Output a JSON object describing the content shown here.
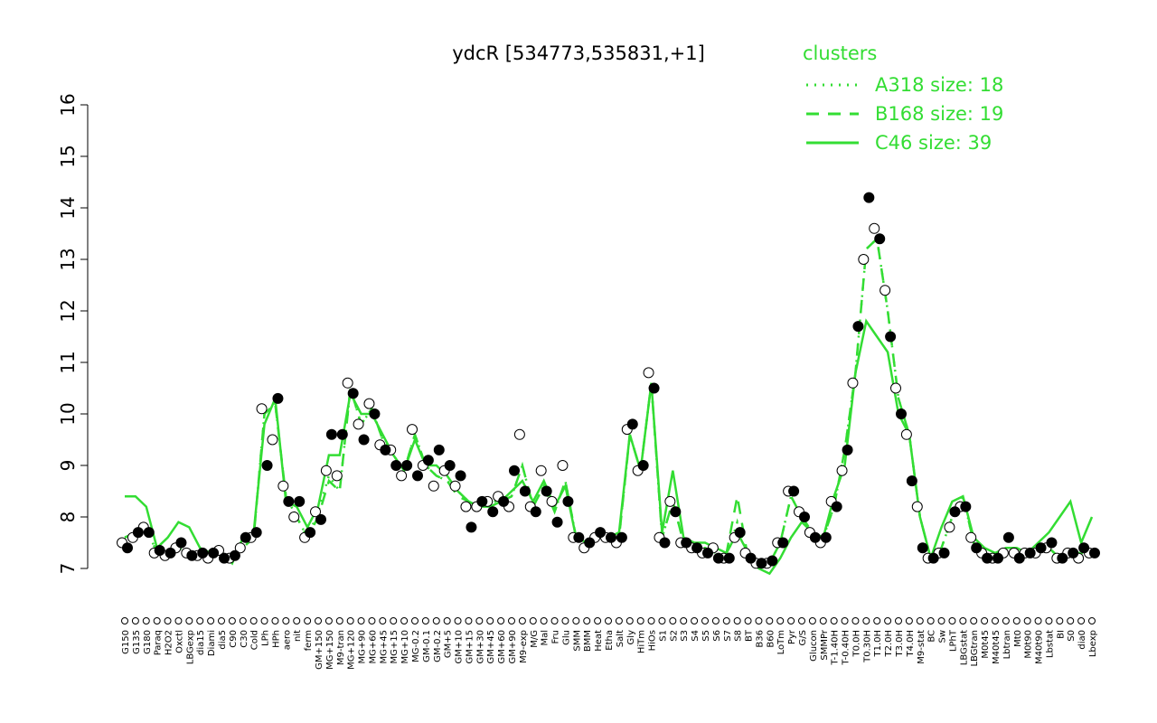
{
  "chart_data": {
    "type": "line",
    "title": "ydcR [534773,535831,+1]",
    "legend_title": "clusters",
    "legend": "top-right",
    "ylim": [
      7,
      16
    ],
    "yticks": [
      7,
      8,
      9,
      10,
      11,
      12,
      13,
      14,
      15,
      16
    ],
    "categories": [
      "G150",
      "G135",
      "G180",
      "Paraq",
      "H2O2",
      "Oxctl",
      "LBGexp",
      "dia15",
      "Diami",
      "dia5",
      "C90",
      "C30",
      "Cold",
      "LPh",
      "HPh",
      "aero",
      "nit",
      "ferm",
      "GM+150",
      "MG+150",
      "M9-tran",
      "MG+120",
      "MG+90",
      "MG+60",
      "MG+45",
      "MG+15",
      "MG+10",
      "MG-0.2",
      "GM-0.1",
      "GM-0.2",
      "GM+5",
      "GM+10",
      "GM+15",
      "GM+30",
      "GM+45",
      "GM+60",
      "GM+90",
      "M9-exp",
      "M/G",
      "Mal",
      "Fru",
      "Glu",
      "SMM",
      "BMM",
      "Heat",
      "Etha",
      "Salt",
      "Gly",
      "HiTm",
      "HiOs",
      "S1",
      "S2",
      "S3",
      "S4",
      "S5",
      "S6",
      "S7",
      "S8",
      "BT",
      "B36",
      "B60",
      "LoTm",
      "Pyr",
      "G/S",
      "Glucon",
      "SMMPr",
      "T-1.40H",
      "T-0.40H",
      "T0.0H",
      "T0.30H",
      "T1.0H",
      "T2.0H",
      "T3.0H",
      "T4.0H",
      "M9-stat",
      "BC",
      "Sw",
      "LPhT",
      "LBGstat",
      "LBGtran",
      "M0t45",
      "M40t45",
      "Lbtran",
      "Mt0",
      "M0t90",
      "M40t90",
      "Lbstat",
      "BI",
      "S0",
      "dia0",
      "Lbexp"
    ],
    "series": [
      {
        "name": "A318 size: 18",
        "color": "#33dd33",
        "style": "dotted",
        "values": [
          7.6,
          7.7,
          7.8,
          7.3,
          7.3,
          7.4,
          7.3,
          7.3,
          7.2,
          7.3,
          7.2,
          7.4,
          7.6,
          10.0,
          10.2,
          8.4,
          8.0,
          7.6,
          8.1,
          8.8,
          8.5,
          10.5,
          9.8,
          10.1,
          9.5,
          9.2,
          8.9,
          9.6,
          9.0,
          8.8,
          8.7,
          8.5,
          8.3,
          8.2,
          8.3,
          8.3,
          8.4,
          9.0,
          8.2,
          8.6,
          8.1,
          8.7,
          7.6,
          7.5,
          7.6,
          7.6,
          7.6,
          9.6,
          8.9,
          10.6,
          7.6,
          8.3,
          7.5,
          7.3,
          7.3,
          7.2,
          7.2,
          7.9,
          7.2,
          7.1,
          7.1,
          7.5,
          8.4,
          8.0,
          7.7,
          7.6,
          8.2,
          9.3,
          10.8,
          13.2,
          13.4,
          12.0,
          10.3,
          9.6,
          8.0,
          7.2,
          7.4,
          8.0,
          8.4,
          7.5,
          7.3,
          7.2,
          7.3,
          7.3,
          7.3,
          7.3,
          7.4,
          7.2,
          7.3,
          7.3,
          7.3
        ]
      },
      {
        "name": "B168 size: 19",
        "color": "#33dd33",
        "style": "dashed",
        "values": [
          7.6,
          7.7,
          7.8,
          7.3,
          7.3,
          7.4,
          7.3,
          7.3,
          7.2,
          7.3,
          7.2,
          7.4,
          7.6,
          10.0,
          10.2,
          8.4,
          8.0,
          7.6,
          8.0,
          8.7,
          8.5,
          10.5,
          9.8,
          10.1,
          9.5,
          9.2,
          8.9,
          9.6,
          9.0,
          8.8,
          8.7,
          8.4,
          8.3,
          8.2,
          8.3,
          8.3,
          8.4,
          9.0,
          8.2,
          8.6,
          8.1,
          8.7,
          7.6,
          7.5,
          7.6,
          7.6,
          7.6,
          9.6,
          8.9,
          10.6,
          7.6,
          8.3,
          7.5,
          7.4,
          7.4,
          7.3,
          7.3,
          8.4,
          7.2,
          7.1,
          7.1,
          7.5,
          8.4,
          8.0,
          7.7,
          7.6,
          8.2,
          9.3,
          10.8,
          13.2,
          13.4,
          12.0,
          10.3,
          9.6,
          8.0,
          7.2,
          7.4,
          8.0,
          8.4,
          7.5,
          7.3,
          7.2,
          7.3,
          7.3,
          7.3,
          7.3,
          7.4,
          7.2,
          7.3,
          7.3,
          7.3
        ]
      },
      {
        "name": "C46 size: 39",
        "color": "#33dd33",
        "style": "solid",
        "values": [
          8.4,
          8.4,
          8.2,
          7.4,
          7.6,
          7.9,
          7.8,
          7.4,
          7.3,
          7.3,
          7.1,
          7.6,
          7.7,
          9.8,
          10.3,
          8.3,
          8.2,
          7.8,
          8.2,
          9.2,
          9.2,
          10.4,
          10.0,
          10.0,
          9.6,
          9.2,
          8.9,
          9.5,
          9.0,
          9.0,
          8.8,
          8.5,
          8.3,
          8.2,
          8.2,
          8.3,
          8.5,
          8.7,
          8.3,
          8.7,
          8.2,
          8.6,
          7.6,
          7.5,
          7.7,
          7.6,
          7.7,
          9.6,
          8.9,
          10.6,
          7.7,
          8.9,
          7.6,
          7.5,
          7.5,
          7.4,
          7.3,
          7.7,
          7.3,
          7.0,
          6.9,
          7.2,
          7.6,
          7.9,
          7.7,
          7.6,
          8.4,
          9.0,
          10.8,
          11.8,
          11.5,
          11.2,
          10.0,
          9.6,
          8.0,
          7.2,
          7.8,
          8.3,
          8.4,
          7.6,
          7.4,
          7.3,
          7.4,
          7.4,
          7.3,
          7.5,
          7.7,
          8.0,
          8.3,
          7.5,
          8.0
        ]
      }
    ],
    "points": [
      {
        "fill": "#ffffff",
        "values": [
          7.5,
          7.6,
          7.8,
          7.3,
          7.25,
          7.4,
          7.3,
          7.25,
          7.2,
          7.35,
          7.2,
          7.4,
          7.6,
          10.1,
          9.5,
          8.6,
          8.0,
          7.6,
          8.1,
          8.9,
          8.8,
          10.6,
          9.8,
          10.2,
          9.4,
          9.3,
          8.8,
          9.7,
          9.0,
          8.6,
          8.9,
          8.6,
          8.2,
          8.2,
          8.3,
          8.4,
          8.2,
          9.6,
          8.2,
          8.9,
          8.3,
          9.0,
          7.6,
          7.4,
          7.6,
          7.6,
          7.5,
          9.7,
          8.9,
          10.8,
          7.6,
          8.3,
          7.5,
          7.4,
          7.3,
          7.4,
          7.2,
          7.6,
          7.3,
          7.1,
          7.1,
          7.5,
          8.5,
          8.1,
          7.7,
          7.5,
          8.3,
          8.9,
          10.6,
          13.0,
          13.6,
          12.4,
          10.5,
          9.6,
          8.2,
          7.2,
          7.3,
          7.8,
          8.2,
          7.6,
          7.3,
          7.2,
          7.3,
          7.3,
          7.3,
          7.3,
          7.4,
          7.2,
          7.3,
          7.2,
          7.3
        ]
      },
      {
        "fill": "#000000",
        "values": [
          7.4,
          7.7,
          7.7,
          7.35,
          7.3,
          7.5,
          7.25,
          7.3,
          7.3,
          7.2,
          7.25,
          7.6,
          7.7,
          9.0,
          10.3,
          8.3,
          8.3,
          7.7,
          7.95,
          9.6,
          9.6,
          10.4,
          9.5,
          10.0,
          9.3,
          9.0,
          9.0,
          8.8,
          9.1,
          9.3,
          9.0,
          8.8,
          7.8,
          8.3,
          8.1,
          8.3,
          8.9,
          8.5,
          8.1,
          8.5,
          7.9,
          8.3,
          7.6,
          7.5,
          7.7,
          7.6,
          7.6,
          9.8,
          9.0,
          10.5,
          7.5,
          8.1,
          7.5,
          7.4,
          7.3,
          7.2,
          7.2,
          7.7,
          7.2,
          7.1,
          7.15,
          7.5,
          8.5,
          8.0,
          7.6,
          7.6,
          8.2,
          9.3,
          11.7,
          14.2,
          13.4,
          11.5,
          10.0,
          8.7,
          7.4,
          7.2,
          7.3,
          8.1,
          8.2,
          7.4,
          7.2,
          7.2,
          7.6,
          7.2,
          7.3,
          7.4,
          7.5,
          7.2,
          7.3,
          7.4,
          7.3
        ]
      }
    ]
  }
}
